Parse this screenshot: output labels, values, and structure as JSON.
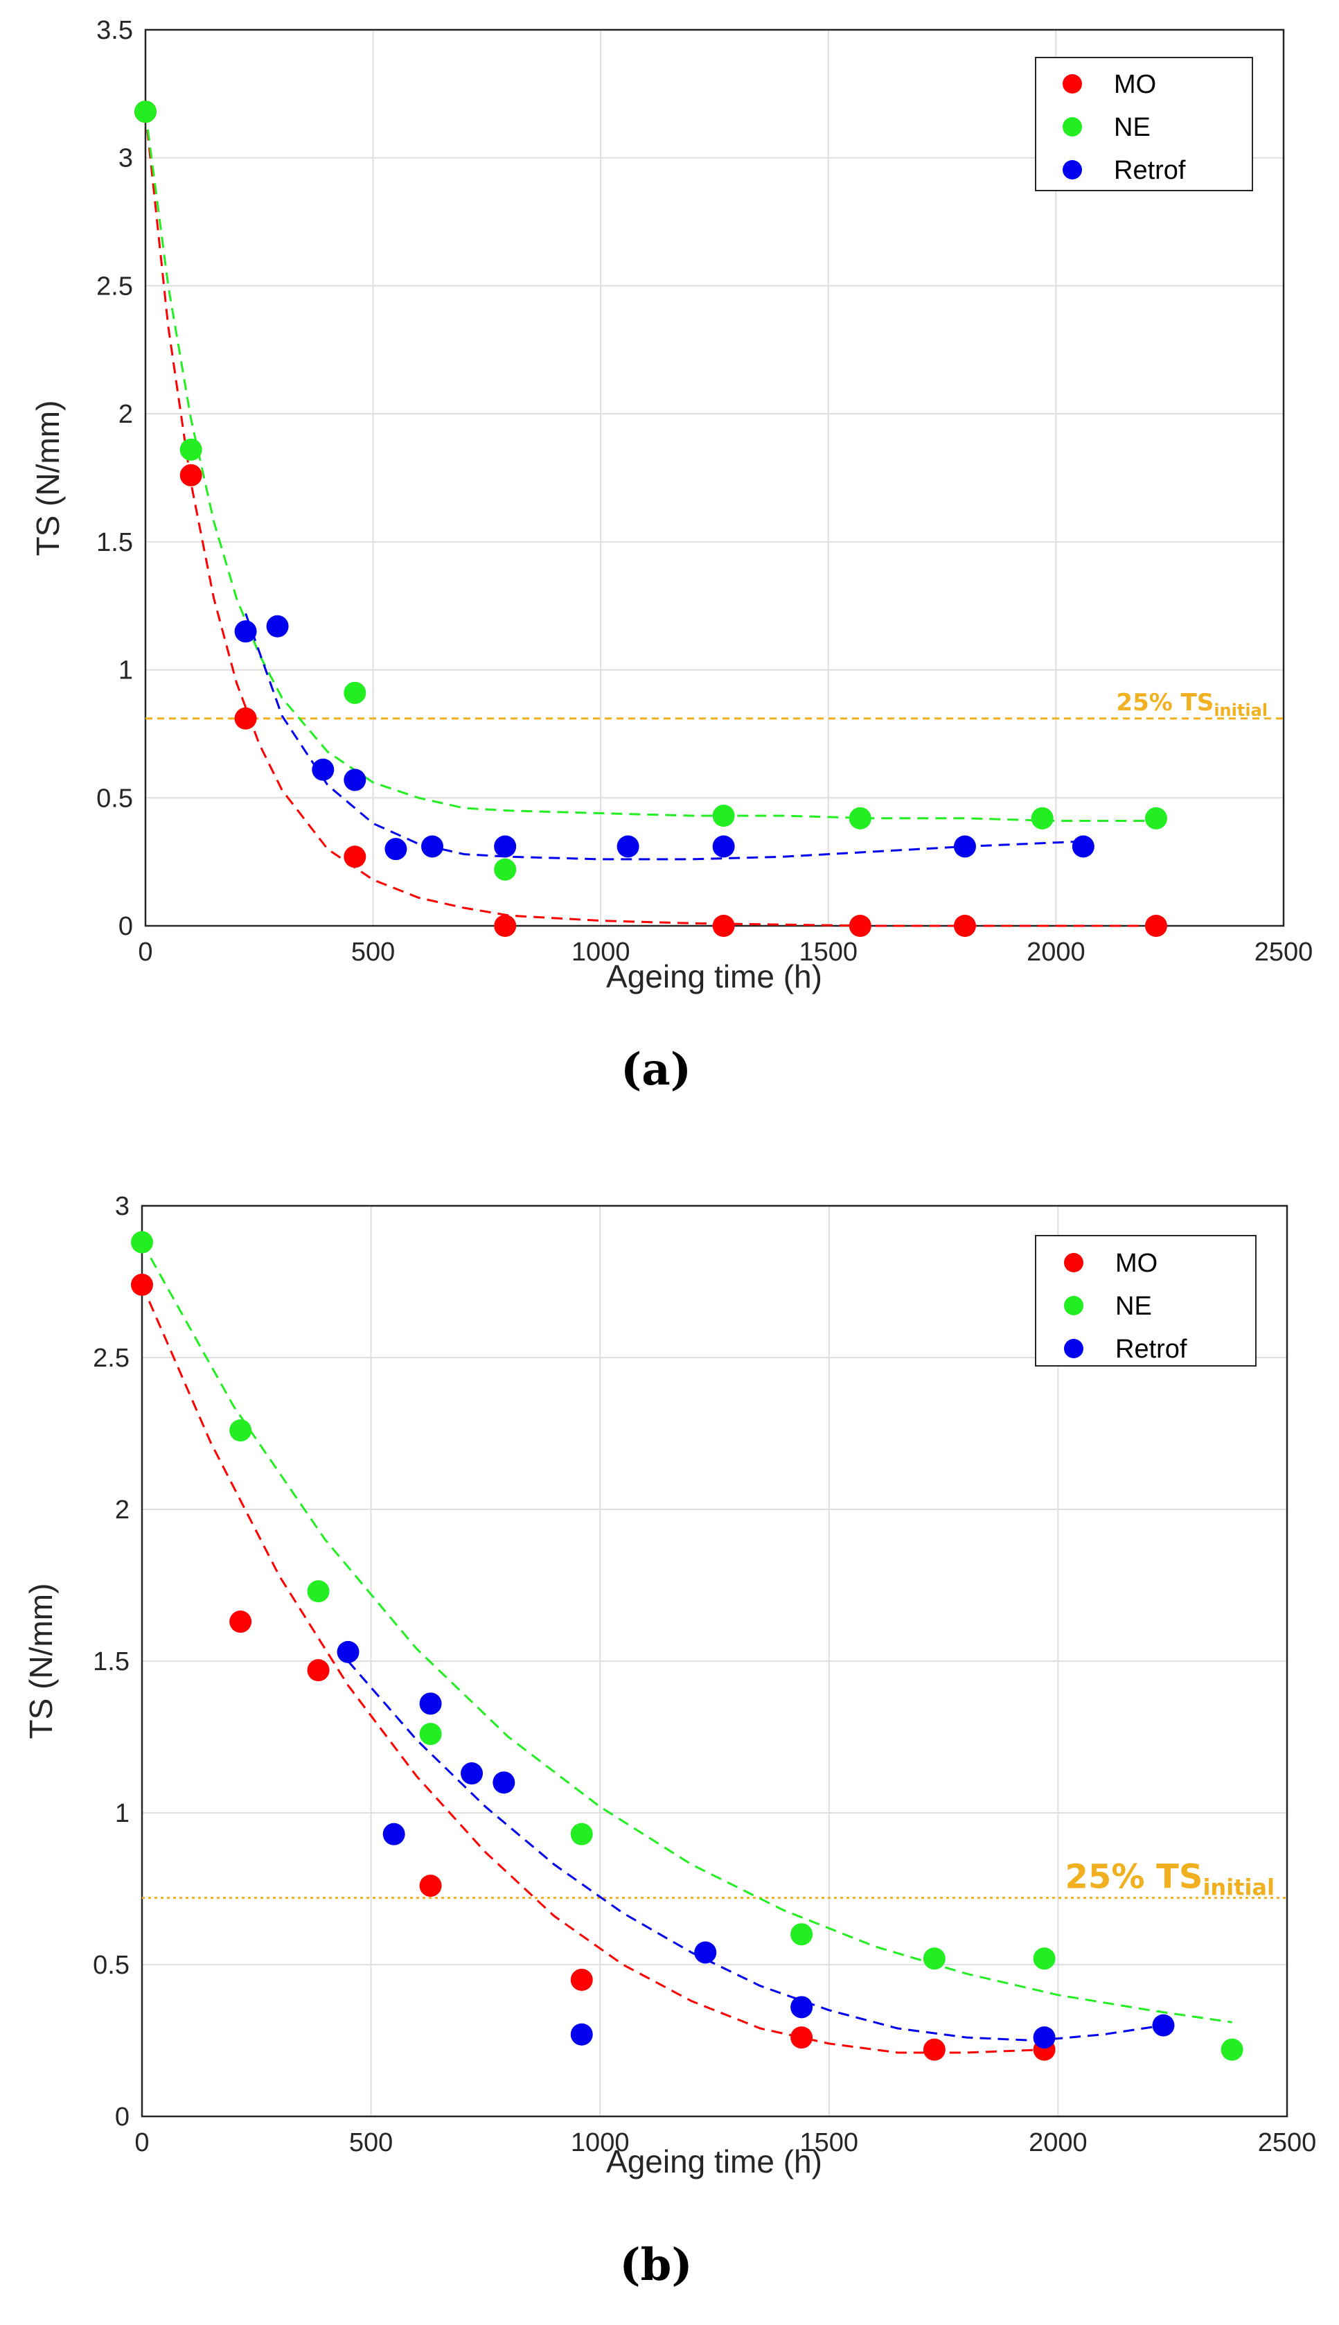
{
  "chart_data": [
    {
      "type": "scatter",
      "caption": "(a)",
      "xlabel": "Ageing time (h)",
      "ylabel": "TS (N/mm)",
      "xlim": [
        0,
        2500
      ],
      "ylim": [
        0,
        3.5
      ],
      "xticks": [
        0,
        500,
        1000,
        1500,
        2000,
        2500
      ],
      "yticks": [
        0,
        0.5,
        1,
        1.5,
        2,
        2.5,
        3,
        3.5
      ],
      "grid": true,
      "legend_position": "top-right",
      "reference_line": {
        "y": 0.81,
        "label_main": "25% TS",
        "label_sub": "initial",
        "color": "#f0b020"
      },
      "series": [
        {
          "name": "MO",
          "color": "#ff0000",
          "x": [
            0,
            100,
            220,
            460,
            790,
            1270,
            1570,
            1800,
            2220
          ],
          "y": [
            3.18,
            1.76,
            0.81,
            0.27,
            0.0,
            0.0,
            0.0,
            0.0,
            0.0
          ],
          "fit_x": [
            0,
            50,
            100,
            150,
            200,
            250,
            300,
            400,
            500,
            600,
            700,
            800,
            1000,
            1200,
            1400,
            1600,
            1800,
            2000,
            2220
          ],
          "fit_y": [
            3.18,
            2.34,
            1.73,
            1.28,
            0.95,
            0.71,
            0.53,
            0.3,
            0.18,
            0.11,
            0.07,
            0.04,
            0.02,
            0.01,
            0.005,
            0.0,
            0.0,
            0.0,
            0.0
          ]
        },
        {
          "name": "NE",
          "color": "#22ee22",
          "x": [
            0,
            100,
            460,
            790,
            1270,
            1570,
            1970,
            2220
          ],
          "y": [
            3.18,
            1.86,
            0.91,
            0.22,
            0.43,
            0.42,
            0.42,
            0.42
          ],
          "fit_x": [
            0,
            50,
            100,
            150,
            200,
            250,
            300,
            400,
            500,
            600,
            700,
            800,
            1000,
            1200,
            1400,
            1600,
            1800,
            2000,
            2220
          ],
          "fit_y": [
            3.18,
            2.5,
            1.98,
            1.58,
            1.28,
            1.06,
            0.89,
            0.68,
            0.56,
            0.5,
            0.46,
            0.45,
            0.44,
            0.43,
            0.43,
            0.42,
            0.42,
            0.41,
            0.41
          ]
        },
        {
          "name": "Retrof",
          "color": "#0000ee",
          "x": [
            220,
            290,
            390,
            460,
            550,
            630,
            790,
            1060,
            1270,
            1800,
            2060
          ],
          "y": [
            1.15,
            1.17,
            0.61,
            0.57,
            0.3,
            0.31,
            0.31,
            0.31,
            0.31,
            0.31,
            0.31
          ],
          "fit_x": [
            220,
            300,
            400,
            500,
            600,
            700,
            800,
            1000,
            1200,
            1400,
            1600,
            1800,
            2060
          ],
          "fit_y": [
            1.22,
            0.82,
            0.55,
            0.4,
            0.32,
            0.28,
            0.27,
            0.26,
            0.26,
            0.27,
            0.29,
            0.31,
            0.33
          ]
        }
      ]
    },
    {
      "type": "scatter",
      "caption": "(b)",
      "xlabel": "Ageing time (h)",
      "ylabel": "TS (N/mm)",
      "xlim": [
        0,
        2500
      ],
      "ylim": [
        0,
        3
      ],
      "xticks": [
        0,
        500,
        1000,
        1500,
        2000,
        2500
      ],
      "yticks": [
        0,
        0.5,
        1,
        1.5,
        2,
        2.5,
        3
      ],
      "grid": true,
      "legend_position": "top-right",
      "reference_line": {
        "y": 0.72,
        "label_main": "25% TS",
        "label_sub": "initial",
        "color": "#f0b020"
      },
      "series": [
        {
          "name": "MO",
          "color": "#ff0000",
          "x": [
            0,
            215,
            385,
            630,
            960,
            1440,
            1730,
            1970
          ],
          "y": [
            2.74,
            1.63,
            1.47,
            0.76,
            0.45,
            0.26,
            0.22,
            0.22
          ],
          "fit_x": [
            0,
            150,
            300,
            450,
            600,
            750,
            900,
            1050,
            1200,
            1350,
            1500,
            1650,
            1800,
            1970
          ],
          "fit_y": [
            2.74,
            2.22,
            1.78,
            1.42,
            1.12,
            0.87,
            0.66,
            0.5,
            0.38,
            0.29,
            0.24,
            0.21,
            0.21,
            0.22
          ]
        },
        {
          "name": "NE",
          "color": "#22ee22",
          "x": [
            0,
            215,
            385,
            630,
            960,
            1440,
            1730,
            1970,
            2380
          ],
          "y": [
            2.88,
            2.26,
            1.73,
            1.26,
            0.93,
            0.6,
            0.52,
            0.52,
            0.22
          ],
          "fit_x": [
            0,
            200,
            400,
            600,
            800,
            1000,
            1200,
            1400,
            1600,
            1800,
            2000,
            2200,
            2380
          ],
          "fit_y": [
            2.88,
            2.34,
            1.9,
            1.54,
            1.25,
            1.02,
            0.83,
            0.68,
            0.56,
            0.47,
            0.4,
            0.35,
            0.31
          ]
        },
        {
          "name": "Retrof",
          "color": "#0000ee",
          "x": [
            450,
            550,
            630,
            720,
            790,
            960,
            1230,
            1440,
            1970,
            2230
          ],
          "y": [
            1.53,
            0.93,
            1.36,
            1.13,
            1.1,
            0.27,
            0.54,
            0.36,
            0.26,
            0.3
          ],
          "fit_x": [
            450,
            600,
            750,
            900,
            1050,
            1200,
            1350,
            1500,
            1650,
            1800,
            1950,
            2100,
            2230
          ],
          "fit_y": [
            1.5,
            1.24,
            1.02,
            0.83,
            0.67,
            0.54,
            0.43,
            0.35,
            0.29,
            0.26,
            0.25,
            0.27,
            0.3
          ]
        }
      ]
    }
  ]
}
